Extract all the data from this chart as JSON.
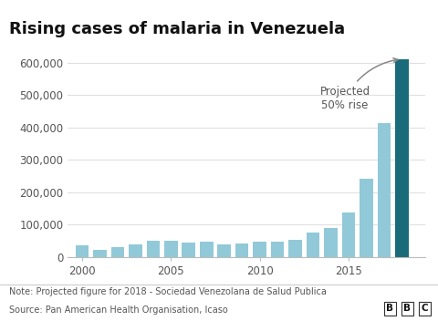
{
  "title": "Rising cases of malaria in Venezuela",
  "years": [
    2000,
    2001,
    2002,
    2003,
    2004,
    2005,
    2006,
    2007,
    2008,
    2009,
    2010,
    2011,
    2012,
    2013,
    2014,
    2015,
    2016,
    2017,
    2018
  ],
  "values": [
    35000,
    22000,
    30000,
    37000,
    50000,
    50000,
    43000,
    47000,
    38000,
    42000,
    47000,
    47000,
    53000,
    76000,
    90000,
    136000,
    240000,
    414000,
    612000
  ],
  "bar_color_light": "#91c9d8",
  "bar_color_dark": "#1a6b7a",
  "projected_bar_index": 18,
  "note_text": "Note: Projected figure for 2018 - Sociedad Venezolana de Salud Publica",
  "source_text": "Source: Pan American Health Organisation, Icaso",
  "bbc_text": "BBC",
  "annotation_text": "Projected\n50% rise",
  "ylim": [
    0,
    660000
  ],
  "yticks": [
    0,
    100000,
    200000,
    300000,
    400000,
    500000,
    600000
  ],
  "ytick_labels": [
    "0",
    "100,000",
    "200,000",
    "300,000",
    "400,000",
    "500,000",
    "600,000"
  ],
  "xtick_years": [
    2000,
    2005,
    2010,
    2015
  ],
  "bg_color": "#ffffff",
  "grid_color": "#e0e0e0",
  "title_fontsize": 13,
  "tick_fontsize": 8.5,
  "note_fontsize": 7,
  "annotation_fontsize": 8.5
}
